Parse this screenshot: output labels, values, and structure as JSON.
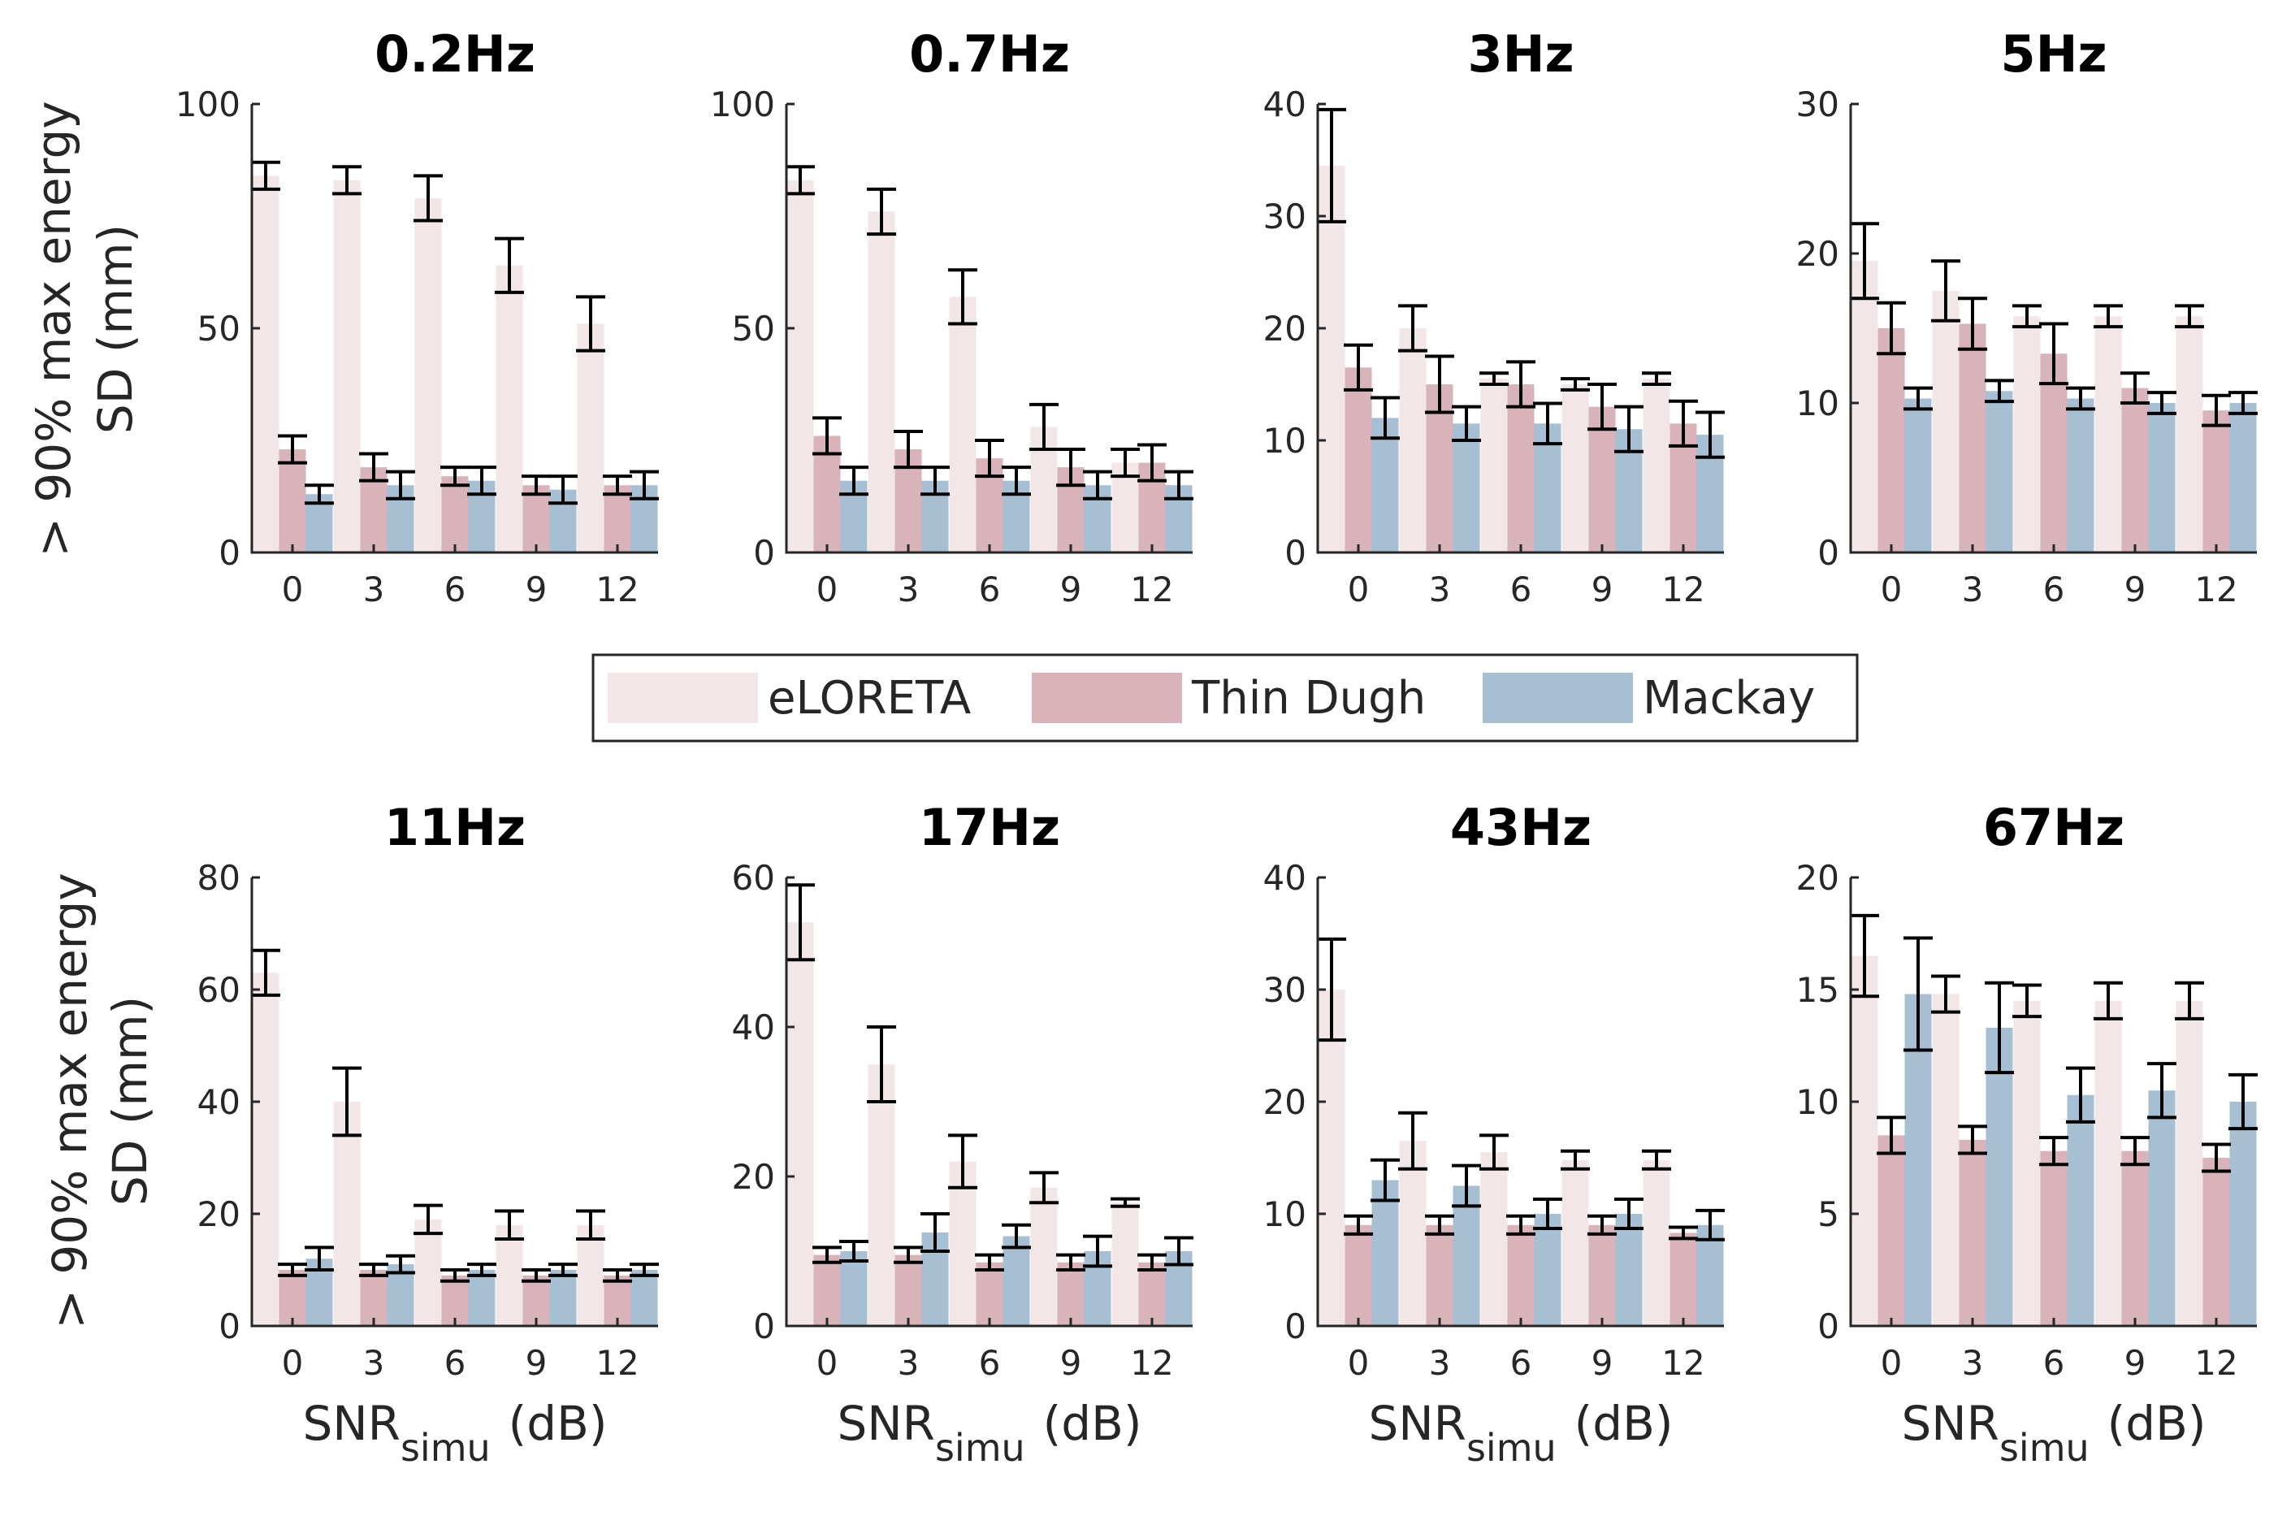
{
  "chart_data": {
    "type": "bar",
    "categories": [
      "0",
      "3",
      "6",
      "9",
      "12"
    ],
    "ylabel_line1": "> 90% max energy",
    "ylabel_line2": "SD (mm)",
    "xlabel_main": "SNR",
    "xlabel_sub": "simu",
    "xlabel_unit": "(dB)",
    "colors": {
      "eLORETA": "#f3e6e7",
      "Thin Dugh": "#d8b3ba",
      "Mackay": "#a6bfd2"
    },
    "legend": [
      "eLORETA",
      "Thin Dugh",
      "Mackay"
    ],
    "panels": [
      {
        "title": "0.2Hz",
        "ylim": [
          0,
          100
        ],
        "yticks": [
          "0",
          "50",
          "100"
        ],
        "series": [
          {
            "name": "eLORETA",
            "values": [
              84,
              83,
              79,
              64,
              51
            ],
            "errors": [
              3,
              3,
              5,
              6,
              6
            ]
          },
          {
            "name": "Thin Dugh",
            "values": [
              23,
              19,
              17,
              15,
              15
            ],
            "errors": [
              3,
              3,
              2,
              2,
              2
            ]
          },
          {
            "name": "Mackay",
            "values": [
              13,
              15,
              16,
              14,
              15
            ],
            "errors": [
              2,
              3,
              3,
              3,
              3
            ]
          }
        ]
      },
      {
        "title": "0.7Hz",
        "ylim": [
          0,
          100
        ],
        "yticks": [
          "0",
          "50",
          "100"
        ],
        "series": [
          {
            "name": "eLORETA",
            "values": [
              83,
              76,
              57,
              28,
              20
            ],
            "errors": [
              3,
              5,
              6,
              5,
              3
            ]
          },
          {
            "name": "Thin Dugh",
            "values": [
              26,
              23,
              21,
              19,
              20
            ],
            "errors": [
              4,
              4,
              4,
              4,
              4
            ]
          },
          {
            "name": "Mackay",
            "values": [
              16,
              16,
              16,
              15,
              15
            ],
            "errors": [
              3,
              3,
              3,
              3,
              3
            ]
          }
        ]
      },
      {
        "title": "3Hz",
        "ylim": [
          0,
          40
        ],
        "yticks": [
          "0",
          "10",
          "20",
          "30",
          "40"
        ],
        "series": [
          {
            "name": "eLORETA",
            "values": [
              34.5,
              20,
              15.5,
              15,
              15.5
            ],
            "errors": [
              5,
              2,
              0.5,
              0.5,
              0.5
            ]
          },
          {
            "name": "Thin Dugh",
            "values": [
              16.5,
              15,
              15,
              13,
              11.5
            ],
            "errors": [
              2,
              2.5,
              2,
              2,
              2
            ]
          },
          {
            "name": "Mackay",
            "values": [
              12,
              11.5,
              11.5,
              11,
              10.5
            ],
            "errors": [
              1.8,
              1.5,
              1.8,
              2,
              2
            ]
          }
        ]
      },
      {
        "title": "5Hz",
        "ylim": [
          0,
          30
        ],
        "yticks": [
          "0",
          "10",
          "20",
          "30"
        ],
        "series": [
          {
            "name": "eLORETA",
            "values": [
              19.5,
              17.5,
              15.8,
              15.8,
              15.8
            ],
            "errors": [
              2.5,
              2,
              0.7,
              0.7,
              0.7
            ]
          },
          {
            "name": "Thin Dugh",
            "values": [
              15,
              15.3,
              13.3,
              11,
              9.5
            ],
            "errors": [
              1.7,
              1.7,
              2,
              1,
              1
            ]
          },
          {
            "name": "Mackay",
            "values": [
              10.3,
              10.8,
              10.3,
              10,
              10
            ],
            "errors": [
              0.7,
              0.7,
              0.7,
              0.7,
              0.7
            ]
          }
        ]
      },
      {
        "title": "11Hz",
        "ylim": [
          0,
          80
        ],
        "yticks": [
          "0",
          "20",
          "40",
          "60",
          "80"
        ],
        "series": [
          {
            "name": "eLORETA",
            "values": [
              63,
              40,
              19,
              18,
              18
            ],
            "errors": [
              4,
              6,
              2.5,
              2.5,
              2.5
            ]
          },
          {
            "name": "Thin Dugh",
            "values": [
              10,
              10,
              9,
              9,
              9
            ],
            "errors": [
              1,
              1,
              1,
              1,
              1
            ]
          },
          {
            "name": "Mackay",
            "values": [
              12,
              11,
              10,
              10,
              10
            ],
            "errors": [
              2,
              1.5,
              1,
              1,
              1
            ]
          }
        ]
      },
      {
        "title": "17Hz",
        "ylim": [
          0,
          60
        ],
        "yticks": [
          "0",
          "20",
          "40",
          "60"
        ],
        "series": [
          {
            "name": "eLORETA",
            "values": [
              54,
              35,
              22,
              18.5,
              16.5
            ],
            "errors": [
              5,
              5,
              3.5,
              2,
              0.5
            ]
          },
          {
            "name": "Thin Dugh",
            "values": [
              9.5,
              9.5,
              8.5,
              8.5,
              8.5
            ],
            "errors": [
              1,
              1,
              1,
              1,
              1
            ]
          },
          {
            "name": "Mackay",
            "values": [
              10,
              12.5,
              12,
              10,
              10
            ],
            "errors": [
              1.3,
              2.5,
              1.5,
              2,
              1.8
            ]
          }
        ]
      },
      {
        "title": "43Hz",
        "ylim": [
          0,
          40
        ],
        "yticks": [
          "0",
          "10",
          "20",
          "30",
          "40"
        ],
        "series": [
          {
            "name": "eLORETA",
            "values": [
              30,
              16.5,
              15.5,
              14.8,
              14.8
            ],
            "errors": [
              4.5,
              2.5,
              1.5,
              0.8,
              0.8
            ]
          },
          {
            "name": "Thin Dugh",
            "values": [
              9,
              9,
              9,
              9,
              8.3
            ],
            "errors": [
              0.8,
              0.8,
              0.8,
              0.8,
              0.5
            ]
          },
          {
            "name": "Mackay",
            "values": [
              13,
              12.5,
              10,
              10,
              9
            ],
            "errors": [
              1.8,
              1.8,
              1.3,
              1.3,
              1.3
            ]
          }
        ]
      },
      {
        "title": "67Hz",
        "ylim": [
          0,
          20
        ],
        "yticks": [
          "0",
          "5",
          "10",
          "15",
          "20"
        ],
        "series": [
          {
            "name": "eLORETA",
            "values": [
              16.5,
              14.8,
              14.5,
              14.5,
              14.5
            ],
            "errors": [
              1.8,
              0.8,
              0.7,
              0.8,
              0.8
            ]
          },
          {
            "name": "Thin Dugh",
            "values": [
              8.5,
              8.3,
              7.8,
              7.8,
              7.5
            ],
            "errors": [
              0.8,
              0.6,
              0.6,
              0.6,
              0.6
            ]
          },
          {
            "name": "Mackay",
            "values": [
              14.8,
              13.3,
              10.3,
              10.5,
              10
            ],
            "errors": [
              2.5,
              2,
              1.2,
              1.2,
              1.2
            ]
          }
        ]
      }
    ]
  }
}
